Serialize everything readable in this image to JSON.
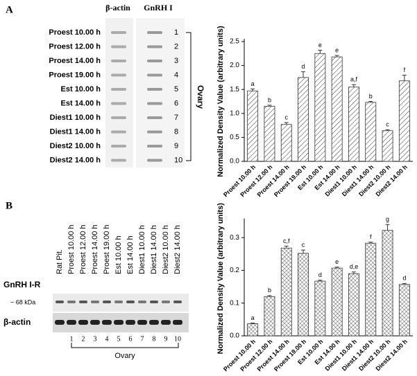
{
  "panel_a": {
    "label": "A",
    "headers": [
      "β-actin",
      "GnRH I"
    ],
    "lanes": [
      "Proest 10.00 h",
      "Proest 12.00 h",
      "Proest 14.00 h",
      "Proest 19.00 h",
      "Est 10.00 h",
      "Est 14.00 h",
      "Diest1 10.00 h",
      "Diest1 14.00 h",
      "Diest2 10.00 h",
      "Diest2 14.00 h"
    ],
    "numbers": [
      "1",
      "2",
      "3",
      "4",
      "5",
      "6",
      "7",
      "8",
      "9",
      "10"
    ],
    "group": "Ovary"
  },
  "panel_b": {
    "label": "B",
    "lanes": [
      "Rat Pit.",
      "Proest 10.00 h",
      "Proest 12.00 h",
      "Proest 14.00 h",
      "Proest 19.00 h",
      "Est 10.00 h",
      "Est 14.00 h",
      "Diest1 10.00 h",
      "Diest1 14.00 h",
      "Diest2 10.00 h",
      "Diest2 14.00 h"
    ],
    "row_labels": [
      "GnRH I-R",
      "~ 68 kDa",
      "β-actin"
    ],
    "numbers": [
      "1",
      "2",
      "3",
      "4",
      "5",
      "6",
      "7",
      "8",
      "9",
      "10"
    ],
    "group": "Ovary"
  },
  "chart_data": [
    {
      "type": "bar",
      "y_label": "Normalized Density Value (arbitrary units)",
      "hatch": "diagonal",
      "color": "#333333",
      "categories": [
        "Proest 10.00 h",
        "Proest 12.00 h",
        "Proest 14.00 h",
        "Proest 19.00 h",
        "Est 10.00 h",
        "Est 14.00 h",
        "Diest1 10.00 h",
        "Diest1 14.00 h",
        "Diest2 10.00 h",
        "Diest2 14.00 h"
      ],
      "values": [
        1.47,
        1.15,
        0.77,
        1.75,
        2.25,
        2.18,
        1.55,
        1.23,
        0.64,
        1.68
      ],
      "errors": [
        0.04,
        0.02,
        0.04,
        0.12,
        0.07,
        0.03,
        0.05,
        0.02,
        0.02,
        0.12
      ],
      "letters": [
        "a",
        "b",
        "c",
        "d",
        "e",
        "e",
        "a,f",
        "b",
        "c",
        "f"
      ],
      "ylim": [
        0,
        2.5
      ],
      "yticks": [
        {
          "value": 0,
          "label": "0.0"
        },
        0.5,
        {
          "value": 1,
          "label": "1.0"
        },
        1.5,
        {
          "value": 2,
          "label": "2.0"
        },
        2.5
      ]
    },
    {
      "type": "bar",
      "y_label": "Normalized Density Value (arbitrary units)",
      "hatch": "cross",
      "color": "#333333",
      "categories": [
        "Proest 10.00 h",
        "Proest 12.00 h",
        "Proest 14.00 h",
        "Proest 19.00 h",
        "Est 10.00 h",
        "Est 14.00 h",
        "Diest1 10.00 h",
        "Diest1 14.00 h",
        "Diest2 10.00 h",
        "Diest2 14.00 h"
      ],
      "values": [
        0.037,
        0.12,
        0.268,
        0.252,
        0.167,
        0.207,
        0.19,
        0.283,
        0.322,
        0.157
      ],
      "errors": [
        0.002,
        0.003,
        0.006,
        0.01,
        0.003,
        0.003,
        0.005,
        0.003,
        0.018,
        0.003
      ],
      "letters": [
        "a",
        "b",
        "c,f",
        "c",
        "d",
        "e",
        "d,e",
        "f",
        "g",
        "d"
      ],
      "ylim": [
        0,
        0.35
      ],
      "yticks": [
        {
          "value": 0,
          "label": "0.0"
        },
        0.1,
        0.2,
        0.3
      ]
    }
  ]
}
